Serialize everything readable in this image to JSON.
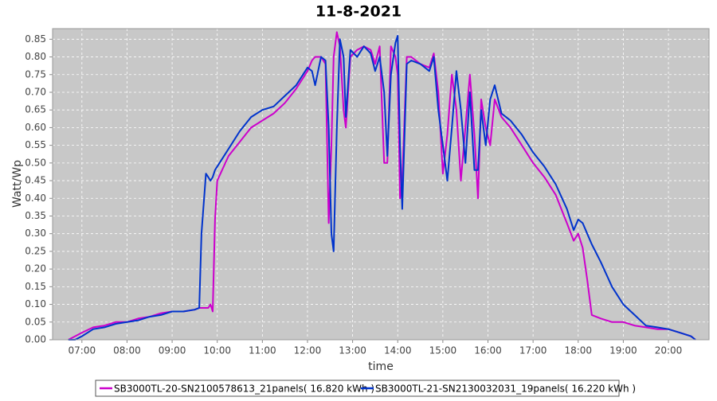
{
  "chart_data": {
    "type": "line",
    "title": "11-8-2021",
    "xlabel": "time",
    "ylabel": "Watt/Wp",
    "grid": true,
    "legend": "bottom",
    "background": "#c8c8c8",
    "x": [
      6.7,
      6.85,
      7.0,
      7.25,
      7.5,
      7.75,
      8.0,
      8.25,
      8.5,
      8.75,
      9.0,
      9.25,
      9.5,
      9.6,
      9.65,
      9.75,
      9.8,
      9.85,
      9.9,
      9.95,
      10.0,
      10.25,
      10.5,
      10.75,
      11.0,
      11.25,
      11.5,
      11.75,
      12.0,
      12.1,
      12.17,
      12.3,
      12.4,
      12.47,
      12.53,
      12.58,
      12.65,
      12.72,
      12.8,
      12.85,
      12.95,
      13.1,
      13.25,
      13.4,
      13.5,
      13.6,
      13.7,
      13.77,
      13.85,
      13.95,
      14.0,
      14.05,
      14.1,
      14.2,
      14.3,
      14.5,
      14.7,
      14.8,
      14.9,
      15.0,
      15.1,
      15.2,
      15.3,
      15.4,
      15.5,
      15.6,
      15.7,
      15.78,
      15.85,
      15.95,
      16.05,
      16.15,
      16.3,
      16.5,
      16.75,
      17.0,
      17.25,
      17.5,
      17.75,
      17.9,
      18.0,
      18.1,
      18.2,
      18.3,
      18.5,
      18.75,
      19.0,
      19.25,
      19.5,
      19.75,
      20.0,
      20.25,
      20.5,
      20.6
    ],
    "series": [
      {
        "name": "SB3000TL-20-SN2100578613_21panels( 16.820 kWh )",
        "color": "#cc00cc",
        "values": [
          0.0,
          0.01,
          0.02,
          0.035,
          0.04,
          0.05,
          0.05,
          0.06,
          0.065,
          0.075,
          0.08,
          0.08,
          0.085,
          0.09,
          0.09,
          0.09,
          0.09,
          0.1,
          0.08,
          0.34,
          0.45,
          0.52,
          0.56,
          0.6,
          0.62,
          0.64,
          0.67,
          0.71,
          0.76,
          0.79,
          0.8,
          0.8,
          0.78,
          0.33,
          0.55,
          0.8,
          0.87,
          0.83,
          0.65,
          0.6,
          0.8,
          0.82,
          0.83,
          0.82,
          0.78,
          0.83,
          0.5,
          0.5,
          0.83,
          0.8,
          0.75,
          0.4,
          0.45,
          0.8,
          0.8,
          0.78,
          0.77,
          0.81,
          0.7,
          0.47,
          0.58,
          0.75,
          0.65,
          0.45,
          0.6,
          0.75,
          0.58,
          0.4,
          0.68,
          0.6,
          0.55,
          0.68,
          0.63,
          0.6,
          0.55,
          0.5,
          0.46,
          0.41,
          0.33,
          0.28,
          0.3,
          0.26,
          0.17,
          0.07,
          0.06,
          0.05,
          0.05,
          0.04,
          0.035,
          0.03,
          0.03,
          0.02,
          0.01,
          0.0
        ]
      },
      {
        "name": "SB3000TL-21-SN2130032031_19panels( 16.220 kWh )",
        "color": "#0033cc",
        "values": [
          0.0,
          0.0,
          0.01,
          0.03,
          0.035,
          0.045,
          0.05,
          0.055,
          0.065,
          0.07,
          0.08,
          0.08,
          0.085,
          0.09,
          0.3,
          0.47,
          0.46,
          0.45,
          0.46,
          0.48,
          0.49,
          0.54,
          0.59,
          0.63,
          0.65,
          0.66,
          0.69,
          0.72,
          0.77,
          0.76,
          0.72,
          0.8,
          0.79,
          0.6,
          0.3,
          0.25,
          0.6,
          0.85,
          0.8,
          0.63,
          0.82,
          0.8,
          0.83,
          0.81,
          0.76,
          0.8,
          0.7,
          0.52,
          0.75,
          0.84,
          0.86,
          0.55,
          0.37,
          0.78,
          0.79,
          0.78,
          0.76,
          0.8,
          0.65,
          0.55,
          0.45,
          0.6,
          0.76,
          0.65,
          0.5,
          0.7,
          0.48,
          0.48,
          0.65,
          0.55,
          0.68,
          0.72,
          0.64,
          0.62,
          0.58,
          0.53,
          0.49,
          0.44,
          0.37,
          0.31,
          0.34,
          0.33,
          0.3,
          0.27,
          0.22,
          0.15,
          0.1,
          0.07,
          0.04,
          0.035,
          0.03,
          0.02,
          0.01,
          0.0
        ]
      }
    ],
    "xlim": [
      6.35,
      20.9
    ],
    "xticks": [
      {
        "value": 7,
        "label": "07:00"
      },
      {
        "value": 8,
        "label": "08:00"
      },
      {
        "value": 9,
        "label": "09:00"
      },
      {
        "value": 10,
        "label": "10:00"
      },
      {
        "value": 11,
        "label": "11:00"
      },
      {
        "value": 12,
        "label": "12:00"
      },
      {
        "value": 13,
        "label": "13:00"
      },
      {
        "value": 14,
        "label": "14:00"
      },
      {
        "value": 15,
        "label": "15:00"
      },
      {
        "value": 16,
        "label": "16:00"
      },
      {
        "value": 17,
        "label": "17:00"
      },
      {
        "value": 18,
        "label": "18:00"
      },
      {
        "value": 19,
        "label": "19:00"
      },
      {
        "value": 20,
        "label": "20:00"
      }
    ],
    "ylim": [
      0,
      0.88
    ],
    "yticks": [
      {
        "value": 0,
        "label": "0.00"
      },
      {
        "value": 0.05,
        "label": "0.05"
      },
      {
        "value": 0.1,
        "label": "0.10"
      },
      {
        "value": 0.15,
        "label": "0.15"
      },
      {
        "value": 0.2,
        "label": "0.20"
      },
      {
        "value": 0.25,
        "label": "0.25"
      },
      {
        "value": 0.3,
        "label": "0.30"
      },
      {
        "value": 0.35,
        "label": "0.35"
      },
      {
        "value": 0.4,
        "label": "0.40"
      },
      {
        "value": 0.45,
        "label": "0.45"
      },
      {
        "value": 0.5,
        "label": "0.50"
      },
      {
        "value": 0.55,
        "label": "0.55"
      },
      {
        "value": 0.6,
        "label": "0.60"
      },
      {
        "value": 0.65,
        "label": "0.65"
      },
      {
        "value": 0.7,
        "label": "0.70"
      },
      {
        "value": 0.75,
        "label": "0.75"
      },
      {
        "value": 0.8,
        "label": "0.80"
      },
      {
        "value": 0.85,
        "label": "0.85"
      }
    ]
  }
}
